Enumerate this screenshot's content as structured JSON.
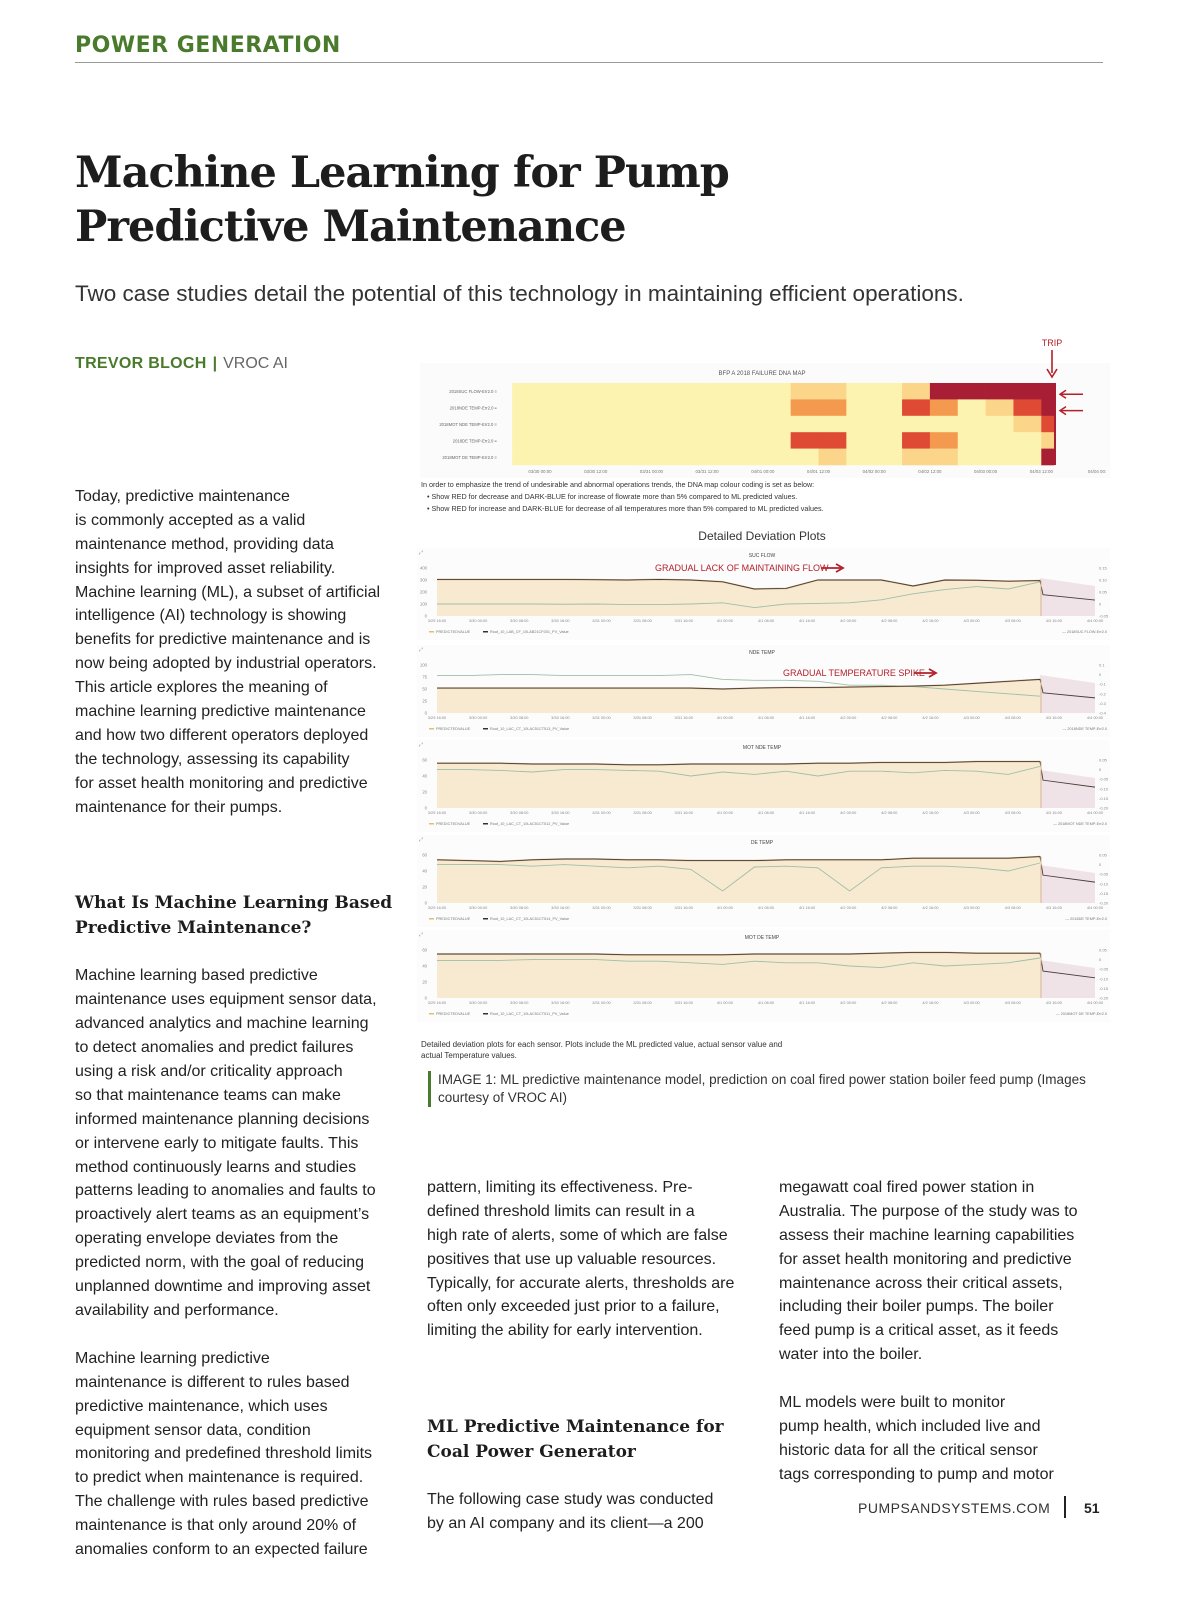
{
  "header": {
    "section": "POWER GENERATION"
  },
  "article": {
    "title": "Machine Learning for Pump\nPredictive Maintenance",
    "subtitle": "Two case studies detail the potential of this technology in maintaining efficient operations.",
    "author": "TREVOR BLOCH",
    "separator": "|",
    "organization": "VROC AI"
  },
  "columns": {
    "col1_p1": "Today, predictive maintenance\nis commonly accepted as a valid\nmaintenance method, providing data\ninsights for improved asset reliability.\nMachine learning (ML), a subset of artificial\nintelligence (AI) technology is showing\nbenefits for predictive maintenance and is\nnow being adopted by industrial operators.\nThis article explores the meaning of\nmachine learning predictive maintenance\nand how two different operators deployed\nthe technology, assessing its capability\nfor asset health monitoring and predictive\nmaintenance for their pumps.",
    "col1_heading": "What Is Machine Learning Based\nPredictive Maintenance?",
    "col1_p2": "Machine learning based predictive\nmaintenance uses equipment sensor data,\nadvanced analytics and machine learning\nto detect anomalies and predict failures\nusing a risk and/or criticality approach\nso that maintenance teams can make\ninformed maintenance planning decisions\nor intervene early to mitigate faults. This\nmethod continuously learns and studies\npatterns leading to anomalies and faults to\nproactively alert teams as an equipment’s\noperating envelope deviates from the\npredicted norm, with the goal of reducing\nunplanned downtime and improving asset\navailability and performance.",
    "col1_p3": "      Machine learning predictive\nmaintenance is different to rules based\npredictive maintenance, which uses\nequipment sensor data, condition\nmonitoring and predefined threshold limits\nto predict when maintenance is required.\nThe challenge with rules based predictive\nmaintenance is that only around 20% of\nanomalies conform to an expected failure",
    "col2_p1": "pattern, limiting its effectiveness. Pre-\ndefined threshold limits can result in a\nhigh rate of alerts, some of which are false\npositives that use up valuable resources.\nTypically, for accurate alerts, thresholds are\noften only exceeded just prior to a failure,\nlimiting the ability for early intervention.",
    "col2_heading": "ML Predictive Maintenance for\nCoal Power Generator",
    "col2_p2": "The following case study was conducted\nby an AI company and its client—a 200",
    "col3_p1": "megawatt coal fired power station in\nAustralia. The purpose of the study was to\nassess their machine learning capabilities\nfor asset health monitoring and predictive\nmaintenance across their critical assets,\nincluding their boiler pumps. The boiler\nfeed pump is a critical asset, as it feeds\nwater into the boiler.",
    "col3_p2": "      ML models were built to monitor\npump health, which included live and\nhistoric data for all the critical sensor\ntags corresponding to pump and motor"
  },
  "figure": {
    "trip_label": "TRIP",
    "dna_map": {
      "title": "BFP A 2018 FAILURE DNA MAP",
      "rows": [
        "2018SUC FLOW-Err2.0 ≡",
        "2018NDE TEMP-Err2.0 ≡",
        "2018MOT NDE TEMP-Err2.0 ≡",
        "2018DE TEMP-Err2.0 ≡",
        "2018MOT DE TEMP-Err2.0 ≡"
      ],
      "x_ticks": [
        "03/30 00:00",
        "03/30 12:00",
        "03/31 00:00",
        "03/31 12:00",
        "04/01 00:00",
        "04/01 12:00",
        "04/02 00:00",
        "04/02 12:00",
        "04/03 00:00",
        "04/03 12:00",
        "04/04 00:"
      ],
      "cell_interval_hours": 6,
      "levels": [
        [
          0,
          0,
          0,
          0,
          0,
          0,
          0,
          0,
          0,
          0,
          1,
          1,
          0,
          0,
          1,
          4,
          4,
          4,
          4,
          4
        ],
        [
          0,
          0,
          0,
          0,
          0,
          0,
          0,
          0,
          0,
          0,
          2,
          2,
          0,
          0,
          3,
          2,
          0,
          1,
          3,
          4
        ],
        [
          0,
          0,
          0,
          0,
          0,
          0,
          0,
          0,
          0,
          0,
          0,
          0,
          0,
          0,
          0,
          0,
          0,
          0,
          1,
          3
        ],
        [
          0,
          0,
          0,
          0,
          0,
          0,
          0,
          0,
          0,
          0,
          3,
          3,
          0,
          0,
          3,
          2,
          0,
          0,
          0,
          1
        ],
        [
          0,
          0,
          0,
          0,
          0,
          0,
          0,
          0,
          0,
          0,
          0,
          1,
          0,
          0,
          1,
          1,
          0,
          0,
          0,
          4
        ]
      ],
      "colors": [
        "#fdf3b0",
        "#fbd58a",
        "#f39a4f",
        "#df4a34",
        "#a81f35"
      ]
    },
    "notes": {
      "intro": "In order to emphasize the trend of undesirable and abnormal operations trends, the DNA map colour coding is set as below:",
      "bullets": [
        "Show RED for decrease and DARK-BLUE for increase of flowrate more than 5% compared to ML predicted values.",
        "Show RED for increase and DARK-BLUE for decrease of all temperatures more than 5% compared to ML predicted values."
      ]
    },
    "deviation_title": "Detailed Deviation Plots",
    "x_ticks": [
      "3/29 16:00",
      "3/30 00:00",
      "3/30 08:00",
      "3/30 16:00",
      "3/31 00:00",
      "3/31 08:00",
      "3/31 16:00",
      "4/1 00:00",
      "4/1 08:00",
      "4/1 16:00",
      "4/2 00:00",
      "4/2 08:00",
      "4/2 16:00",
      "4/3 00:00",
      "4/3 08:00",
      "4/3 16:00",
      "4/4 00:00"
    ],
    "plots": [
      {
        "title": "SUC FLOW",
        "y_ticks": [
          "400",
          "300",
          "200",
          "100",
          "0"
        ],
        "ymax": 400,
        "annotation": "GRADUAL LACK OF MAINTAINING FLOW",
        "actual": [
          305,
          305,
          305,
          305,
          305,
          303,
          300,
          305,
          300,
          285,
          225,
          230,
          300,
          300,
          300,
          250,
          300,
          298,
          290,
          295
        ],
        "deviation": [
          100,
          100,
          100,
          100,
          98,
          100,
          95,
          95,
          100,
          110,
          70,
          100,
          105,
          110,
          135,
          185,
          220,
          245,
          225,
          285
        ],
        "legend": [
          "PREDICTEDVALUE",
          "Root_10_LAB_CF_10LAB21CF001_PV_Value"
        ],
        "right_legend": "2018SUC FLOW-Err2.0",
        "right_ticks": [
          "0.15",
          "0.10",
          "0.05",
          "0",
          "-0.05"
        ]
      },
      {
        "title": "NDE TEMP",
        "y_ticks": [
          "100",
          "75",
          "50",
          "25",
          "0"
        ],
        "ymax": 100,
        "annotation": "GRADUAL TEMPERATURE SPIKE",
        "actual": [
          52,
          52,
          52,
          52,
          52,
          52,
          52,
          52,
          52,
          50,
          52,
          53,
          53,
          54,
          55,
          56,
          58,
          62,
          66,
          70
        ],
        "deviation": [
          78,
          78,
          80,
          80,
          78,
          78,
          78,
          78,
          80,
          70,
          68,
          68,
          66,
          58,
          58,
          55,
          50,
          45,
          40,
          35
        ],
        "legend": [
          "PREDICTEDVALUE",
          "Root_10_LAC_CT_10LAC51CT513_PV_Value"
        ],
        "right_legend": "2018NDE TEMP-Err2.0",
        "right_ticks": [
          "0.1",
          "0",
          "-0.1",
          "-0.2",
          "-0.3",
          "-0.4"
        ]
      },
      {
        "title": "MOT NDE TEMP",
        "y_ticks": [
          "60",
          "40",
          "20",
          "0"
        ],
        "ymax": 60,
        "actual": [
          56,
          56,
          56,
          55,
          55,
          55,
          54,
          54,
          55,
          55,
          55,
          55,
          56,
          56,
          57,
          57,
          57,
          58,
          58,
          58
        ],
        "deviation": [
          48,
          48,
          47,
          45,
          48,
          48,
          47,
          46,
          40,
          45,
          42,
          46,
          40,
          46,
          46,
          44,
          47,
          46,
          42,
          52
        ],
        "legend": [
          "PREDICTEDVALUE",
          "Root_10_LAC_CT_10LAC51CT512_PV_Value"
        ],
        "right_legend": "2018MOT NDE TEMP-Err2.0",
        "right_ticks": [
          "0.05",
          "0",
          "-0.05",
          "-0.10",
          "-0.15",
          "-0.20"
        ]
      },
      {
        "title": "DE TEMP",
        "y_ticks": [
          "60",
          "40",
          "20",
          "0"
        ],
        "ymax": 60,
        "actual": [
          54,
          53,
          52,
          54,
          55,
          55,
          54,
          54,
          53,
          53,
          53,
          54,
          54,
          54,
          54,
          56,
          56,
          56,
          56,
          58
        ],
        "deviation": [
          48,
          48,
          48,
          46,
          48,
          46,
          44,
          46,
          42,
          15,
          45,
          46,
          44,
          15,
          44,
          46,
          46,
          44,
          40,
          50
        ],
        "legend": [
          "PREDICTEDVALUE",
          "Root_10_LAC_CT_10LAC51CT514_PV_Value"
        ],
        "right_legend": "2018DE TEMP-Err2.0",
        "right_ticks": [
          "0.05",
          "0",
          "-0.05",
          "-0.10",
          "-0.15",
          "-0.20"
        ]
      },
      {
        "title": "MOT DE TEMP",
        "y_ticks": [
          "60",
          "40",
          "20",
          "0"
        ],
        "ymax": 60,
        "actual": [
          55,
          55,
          55,
          55,
          55,
          55,
          54,
          54,
          54,
          54,
          55,
          55,
          55,
          55,
          56,
          57,
          57,
          56,
          56,
          56
        ],
        "deviation": [
          47,
          47,
          47,
          48,
          48,
          48,
          46,
          46,
          44,
          42,
          46,
          44,
          44,
          40,
          38,
          44,
          40,
          42,
          44,
          50
        ],
        "legend": [
          "PREDICTEDVALUE",
          "Root_10_LAC_CT_10LAC51CT511_PV_Value"
        ],
        "right_legend": "2018MOT DE TEMP-Err2.0",
        "right_ticks": [
          "0.05",
          "0",
          "-0.05",
          "-0.10",
          "-0.15",
          "-0.20"
        ]
      }
    ],
    "inner_caption": "Detailed deviation plots for each sensor. Plots include the ML predicted value, actual sensor value and\nactual Temperature values.",
    "caption": "IMAGE 1: ML predictive maintenance model, prediction on coal fired power station boiler feed pump (Images courtesy of VROC AI)"
  },
  "footer": {
    "site": "PUMPSANDSYSTEMS.COM",
    "page": "51"
  },
  "colors": {
    "accent": "#4a7a2c",
    "annotation_red": "#b3202a"
  }
}
